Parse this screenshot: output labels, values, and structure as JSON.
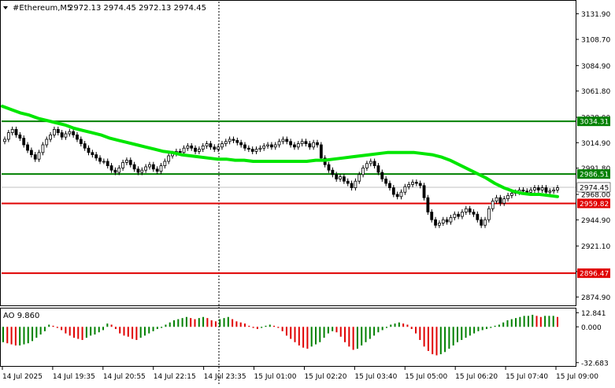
{
  "header": {
    "symbol_label": "#Ethereum,M5",
    "ohlc": "2972.13 2974.45 2972.13 2974.45",
    "menu_icon": "triangle-down-icon"
  },
  "colors": {
    "background": "#ffffff",
    "axis": "#000000",
    "candle": "#000000",
    "ma_line": "#00e600",
    "level_green": "#008000",
    "level_red": "#e00000",
    "ao_up": "#008000",
    "ao_down": "#e00000",
    "current_price_bg": "#ffffff",
    "grid_vline": "#000000"
  },
  "chart_data": [
    {
      "type": "candlestick",
      "title": "#Ethereum,M5",
      "ylim": [
        2868,
        3143
      ],
      "y_ticks": [
        "3131.90",
        "3108.70",
        "3084.90",
        "3061.80",
        "3038.00",
        "3014.90",
        "2991.80",
        "2968.00",
        "2944.90",
        "2921.10",
        "2898.00",
        "2874.90"
      ],
      "x_ticks": [
        "14 Jul 2025",
        "14 Jul 19:35",
        "14 Jul 20:55",
        "14 Jul 22:15",
        "14 Jul 23:35",
        "15 Jul 01:00",
        "15 Jul 02:20",
        "15 Jul 03:40",
        "15 Jul 05:00",
        "15 Jul 06:20",
        "15 Jul 07:40",
        "15 Jul 09:00"
      ],
      "current_price": "2974.45",
      "levels": [
        {
          "label": "3034.31",
          "value": 3034.31,
          "color": "green"
        },
        {
          "label": "2986.51",
          "value": 2986.51,
          "color": "green"
        },
        {
          "label": "2959.82",
          "value": 2959.82,
          "color": "red"
        },
        {
          "label": "2896.47",
          "value": 2896.47,
          "color": "red"
        }
      ],
      "closes": [
        3018,
        3024,
        3027,
        3022,
        3019,
        3013,
        3008,
        3004,
        3000,
        3006,
        3013,
        3018,
        3022,
        3027,
        3024,
        3020,
        3023,
        3025,
        3022,
        3018,
        3014,
        3010,
        3006,
        3004,
        3001,
        2998,
        2998,
        2994,
        2990,
        2988,
        2992,
        2997,
        2999,
        2995,
        2991,
        2988,
        2990,
        2993,
        2995,
        2991,
        2989,
        2994,
        2998,
        3003,
        3005,
        3007,
        3006,
        3010,
        3012,
        3010,
        3007,
        3009,
        3012,
        3014,
        3011,
        3009,
        3011,
        3014,
        3016,
        3018,
        3017,
        3015,
        3013,
        3010,
        3009,
        3007,
        3009,
        3010,
        3012,
        3013,
        3011,
        3013,
        3016,
        3018,
        3016,
        3013,
        3011,
        3014,
        3016,
        3014,
        3011,
        3015,
        3013,
        3001,
        2995,
        2990,
        2986,
        2982,
        2984,
        2980,
        2978,
        2974,
        2980,
        2986,
        2992,
        2996,
        2998,
        2994,
        2988,
        2982,
        2978,
        2974,
        2968,
        2966,
        2970,
        2975,
        2977,
        2979,
        2978,
        2976,
        2965,
        2952,
        2945,
        2940,
        2942,
        2945,
        2943,
        2947,
        2950,
        2948,
        2952,
        2955,
        2952,
        2950,
        2945,
        2940,
        2945,
        2955,
        2962,
        2965,
        2960,
        2964,
        2967,
        2969,
        2970,
        2972,
        2971,
        2970,
        2972,
        2974,
        2972,
        2974,
        2970,
        2971,
        2972,
        2974
      ],
      "ma_line": [
        3048,
        3045,
        3042,
        3040,
        3037,
        3035,
        3033,
        3031,
        3028,
        3026,
        3024,
        3022,
        3019,
        3017,
        3015,
        3013,
        3011,
        3009,
        3007,
        3006,
        3004,
        3003,
        3002,
        3001,
        3000,
        3000,
        2999,
        2999,
        2998,
        2998,
        2998,
        2998,
        2998,
        2998,
        2998,
        2999,
        2999,
        3000,
        3001,
        3002,
        3003,
        3004,
        3005,
        3006,
        3006,
        3006,
        3006,
        3005,
        3004,
        3002,
        2999,
        2995,
        2991,
        2987,
        2983,
        2978,
        2974,
        2971,
        2969,
        2968,
        2968,
        2967,
        2966
      ]
    },
    {
      "type": "bar",
      "title": "AO 9.860",
      "ylim": [
        -35,
        16
      ],
      "y_ticks": [
        "12.841",
        "0.000",
        "-32.683"
      ],
      "series": [
        {
          "name": "AO",
          "values": [
            -14,
            -15,
            -16,
            -17,
            -17,
            -16,
            -15,
            -13,
            -10,
            -7,
            -4,
            2,
            1,
            -1,
            -3,
            -6,
            -8,
            -10,
            -11,
            -12,
            -10,
            -8,
            -7,
            -5,
            -3,
            3,
            2,
            -2,
            -6,
            -8,
            -9,
            -11,
            -12,
            -10,
            -8,
            -6,
            -4,
            -2,
            -1,
            2,
            4,
            6,
            7,
            8,
            9,
            8,
            7,
            8,
            9,
            8,
            6,
            5,
            7,
            8,
            9,
            7,
            5,
            4,
            3,
            1,
            -1,
            -2,
            -1,
            1,
            2,
            1,
            -1,
            -4,
            -8,
            -11,
            -14,
            -17,
            -19,
            -20,
            -18,
            -16,
            -14,
            -10,
            -6,
            -4,
            -5,
            -9,
            -14,
            -18,
            -21,
            -20,
            -17,
            -14,
            -11,
            -8,
            -5,
            -3,
            -1,
            2,
            3,
            4,
            3,
            2,
            -2,
            -6,
            -12,
            -18,
            -22,
            -25,
            -26,
            -25,
            -23,
            -20,
            -17,
            -14,
            -12,
            -10,
            -8,
            -6,
            -4,
            -3,
            -2,
            -1,
            1,
            2,
            4,
            6,
            7,
            8,
            9,
            10,
            10,
            11,
            10,
            9,
            10,
            10,
            10,
            9
          ]
        }
      ]
    }
  ]
}
